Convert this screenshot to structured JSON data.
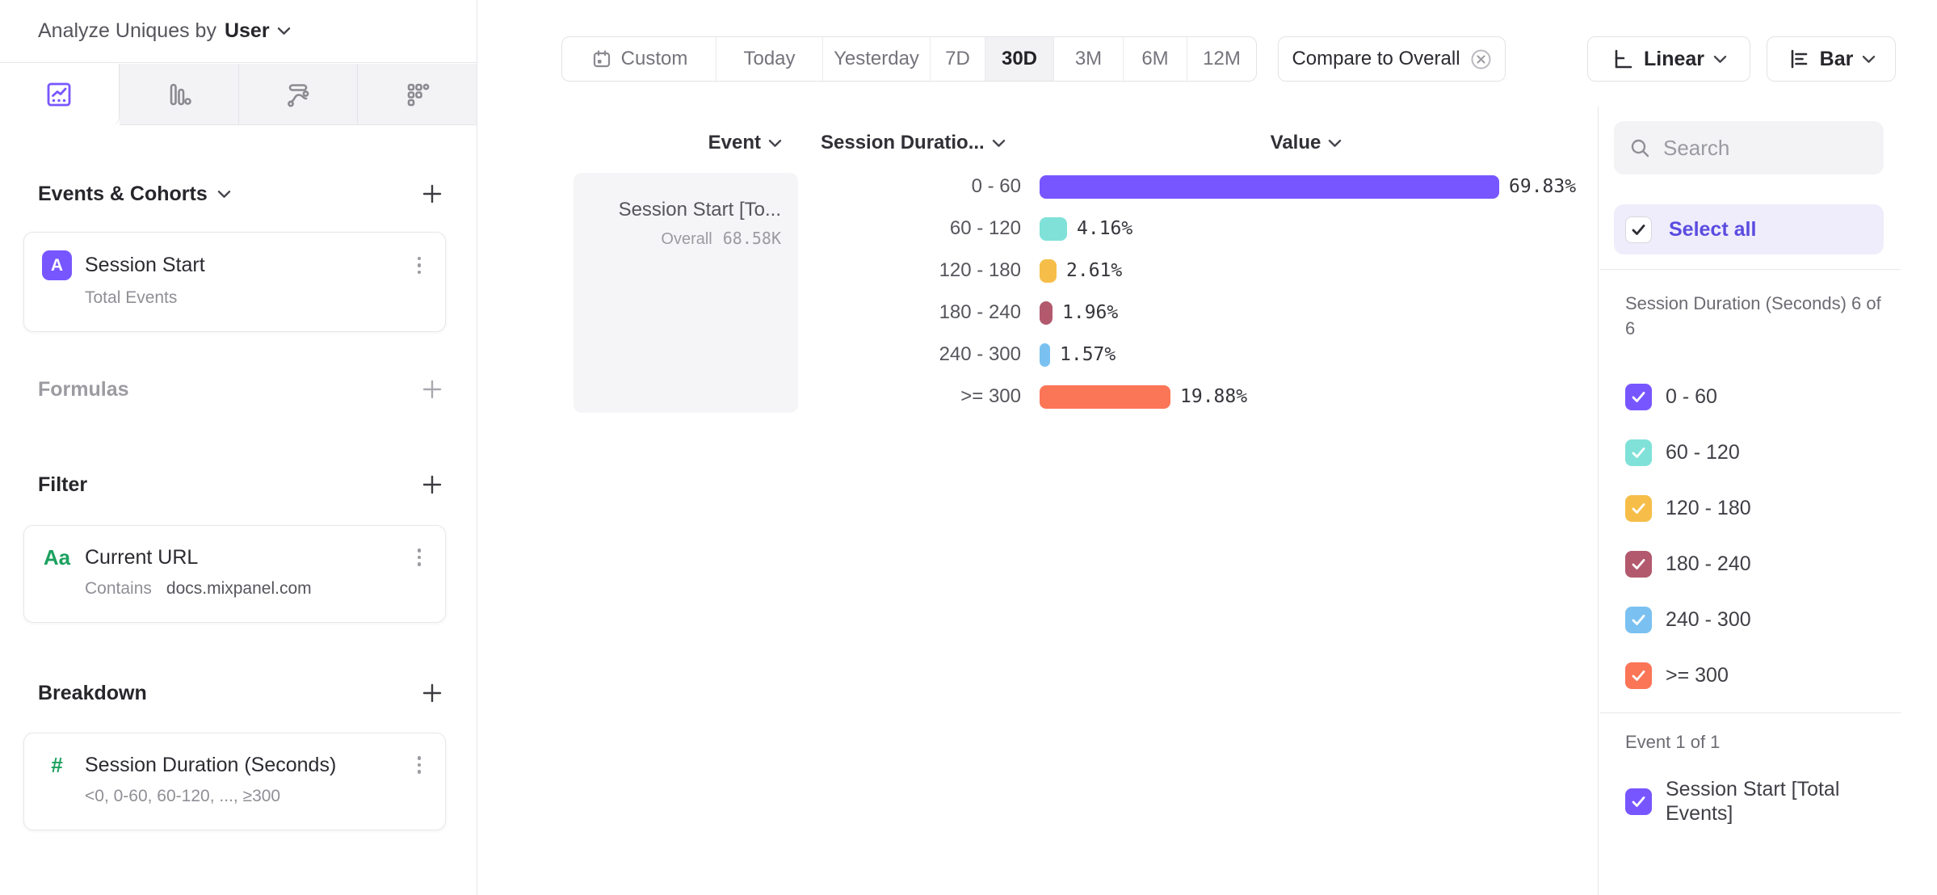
{
  "sidebar": {
    "analyze_label": "Analyze Uniques by",
    "analyze_value": "User",
    "tabs": [
      {
        "icon": "insights-line-chart-icon",
        "selected": true
      },
      {
        "icon": "funnel-bars-icon",
        "selected": false
      },
      {
        "icon": "flows-icon",
        "selected": false
      },
      {
        "icon": "retention-grid-icon",
        "selected": false
      }
    ],
    "events_cohorts_label": "Events & Cohorts",
    "event_card": {
      "badge": "A",
      "title": "Session Start",
      "subtitle": "Total Events"
    },
    "formulas_label": "Formulas",
    "filter_label": "Filter",
    "filter_card": {
      "icon_text": "Aa",
      "title": "Current URL",
      "operator": "Contains",
      "value": "docs.mixpanel.com"
    },
    "breakdown_label": "Breakdown",
    "breakdown_card": {
      "icon": "hash-icon",
      "title": "Session Duration (Seconds)",
      "subtitle": "<0, 0-60, 60-120, ..., ≥300"
    }
  },
  "toolbar": {
    "date_ranges": [
      "Custom",
      "Today",
      "Yesterday",
      "7D",
      "30D",
      "3M",
      "6M",
      "12M"
    ],
    "selected_range": "30D",
    "compare_chip_label": "Compare to Overall",
    "linear_label": "Linear",
    "bar_label": "Bar"
  },
  "chart": {
    "event_column_label": "Event",
    "breakdown_column_label": "Session Duratio...",
    "value_column_label": "Value",
    "event_cell": {
      "title": "Session Start [To...",
      "overall_label": "Overall",
      "overall_value": "68.58K"
    }
  },
  "chart_data": {
    "type": "bar",
    "orientation": "horizontal",
    "title": "Session Start [Total Events] by Session Duration (Seconds)",
    "categories": [
      "0 - 60",
      "60 - 120",
      "120 - 180",
      "180 - 240",
      "240 - 300",
      ">= 300"
    ],
    "series": [
      {
        "name": "Session Start [Total Events]",
        "overall": "68.58K",
        "values": [
          69.83,
          4.16,
          2.61,
          1.96,
          1.57,
          19.88
        ]
      }
    ],
    "value_labels": [
      "69.83%",
      "4.16%",
      "2.61%",
      "1.96%",
      "1.57%",
      "19.88%"
    ],
    "unit": "%",
    "xlim": [
      0,
      69.83
    ],
    "grid": false,
    "colors": [
      "#7856ff",
      "#80e1d9",
      "#f6be49",
      "#b2596e",
      "#7ac1f1",
      "#fb7557"
    ]
  },
  "right_panel": {
    "search_placeholder": "Search",
    "select_all_label": "Select all",
    "breakdown_group_label": "Session Duration (Seconds) 6 of 6",
    "items": [
      {
        "label": "0 - 60",
        "color": "#7856ff",
        "checked": true
      },
      {
        "label": "60 - 120",
        "color": "#80e1d9",
        "checked": true
      },
      {
        "label": "120 - 180",
        "color": "#f6be49",
        "checked": true
      },
      {
        "label": "180 - 240",
        "color": "#b2596e",
        "checked": true
      },
      {
        "label": "240 - 300",
        "color": "#7ac1f1",
        "checked": true
      },
      {
        "label": ">= 300",
        "color": "#fb7557",
        "checked": true
      }
    ],
    "event_group_label": "Event 1 of 1",
    "event_item": {
      "label": "Session Start [Total Events]",
      "color": "#7856ff",
      "checked": true
    }
  },
  "colors": {
    "accent_purple": "#7856ff",
    "select_all_text": "#5b4ce0",
    "green_property": "#1ca15f",
    "panel_gray": "#f3f3f5",
    "border_gray": "#e6e6ea"
  }
}
